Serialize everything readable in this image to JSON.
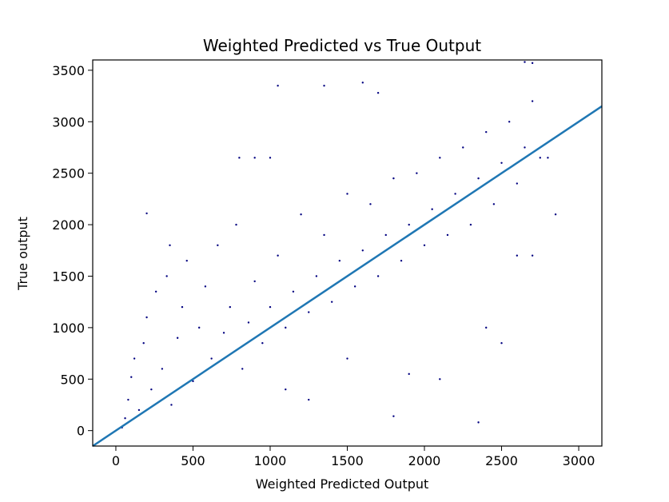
{
  "chart_data": {
    "type": "scatter",
    "title": "Weighted Predicted vs True Output",
    "xlabel": "Weighted Predicted Output",
    "ylabel": "True output",
    "xlim": [
      -150,
      3150
    ],
    "ylim": [
      -150,
      3600
    ],
    "xticks": [
      0,
      500,
      1000,
      1500,
      2000,
      2500,
      3000
    ],
    "yticks": [
      0,
      500,
      1000,
      1500,
      2000,
      2500,
      3000,
      3500
    ],
    "grid": false,
    "colors": {
      "points": "#000080",
      "line": "#1f77b4"
    },
    "reference_line": {
      "name": "",
      "x": [
        -150,
        3150
      ],
      "y": [
        -150,
        3150
      ]
    },
    "series": [
      {
        "type": "scatter",
        "points": [
          [
            40,
            30
          ],
          [
            60,
            120
          ],
          [
            80,
            300
          ],
          [
            100,
            520
          ],
          [
            120,
            700
          ],
          [
            150,
            200
          ],
          [
            180,
            850
          ],
          [
            200,
            1100
          ],
          [
            230,
            400
          ],
          [
            260,
            1350
          ],
          [
            300,
            600
          ],
          [
            330,
            1500
          ],
          [
            360,
            250
          ],
          [
            400,
            900
          ],
          [
            430,
            1200
          ],
          [
            460,
            1650
          ],
          [
            500,
            480
          ],
          [
            540,
            1000
          ],
          [
            580,
            1400
          ],
          [
            620,
            700
          ],
          [
            660,
            1800
          ],
          [
            700,
            950
          ],
          [
            740,
            1200
          ],
          [
            780,
            2000
          ],
          [
            820,
            600
          ],
          [
            860,
            1050
          ],
          [
            900,
            1450
          ],
          [
            950,
            850
          ],
          [
            1000,
            1200
          ],
          [
            1050,
            1700
          ],
          [
            1100,
            1000
          ],
          [
            1150,
            1350
          ],
          [
            1200,
            2100
          ],
          [
            1250,
            1150
          ],
          [
            1300,
            1500
          ],
          [
            1350,
            1900
          ],
          [
            1400,
            1250
          ],
          [
            1450,
            1650
          ],
          [
            1500,
            2300
          ],
          [
            1550,
            1400
          ],
          [
            1600,
            1750
          ],
          [
            1650,
            2200
          ],
          [
            1700,
            1500
          ],
          [
            1750,
            1900
          ],
          [
            1800,
            2450
          ],
          [
            1850,
            1650
          ],
          [
            1900,
            2000
          ],
          [
            1950,
            2500
          ],
          [
            2000,
            1800
          ],
          [
            2050,
            2150
          ],
          [
            2100,
            2650
          ],
          [
            2150,
            1900
          ],
          [
            2200,
            2300
          ],
          [
            2250,
            2750
          ],
          [
            2300,
            2000
          ],
          [
            2350,
            2450
          ],
          [
            2400,
            2900
          ],
          [
            2450,
            2200
          ],
          [
            2500,
            2600
          ],
          [
            2550,
            3000
          ],
          [
            2600,
            2400
          ],
          [
            2650,
            2750
          ],
          [
            2700,
            3200
          ],
          [
            2750,
            2650
          ],
          [
            1050,
            3350
          ],
          [
            1350,
            3350
          ],
          [
            1600,
            3380
          ],
          [
            1700,
            3280
          ],
          [
            2650,
            3580
          ],
          [
            2700,
            3570
          ],
          [
            800,
            2650
          ],
          [
            900,
            2650
          ],
          [
            1000,
            2650
          ],
          [
            200,
            2110
          ],
          [
            350,
            1800
          ],
          [
            2800,
            2650
          ],
          [
            2850,
            2100
          ],
          [
            2700,
            1700
          ],
          [
            2600,
            1700
          ],
          [
            2350,
            80
          ],
          [
            1800,
            140
          ],
          [
            2500,
            850
          ],
          [
            2400,
            1000
          ],
          [
            2100,
            500
          ],
          [
            1900,
            550
          ],
          [
            1500,
            700
          ],
          [
            1250,
            300
          ],
          [
            1100,
            400
          ]
        ]
      }
    ]
  }
}
